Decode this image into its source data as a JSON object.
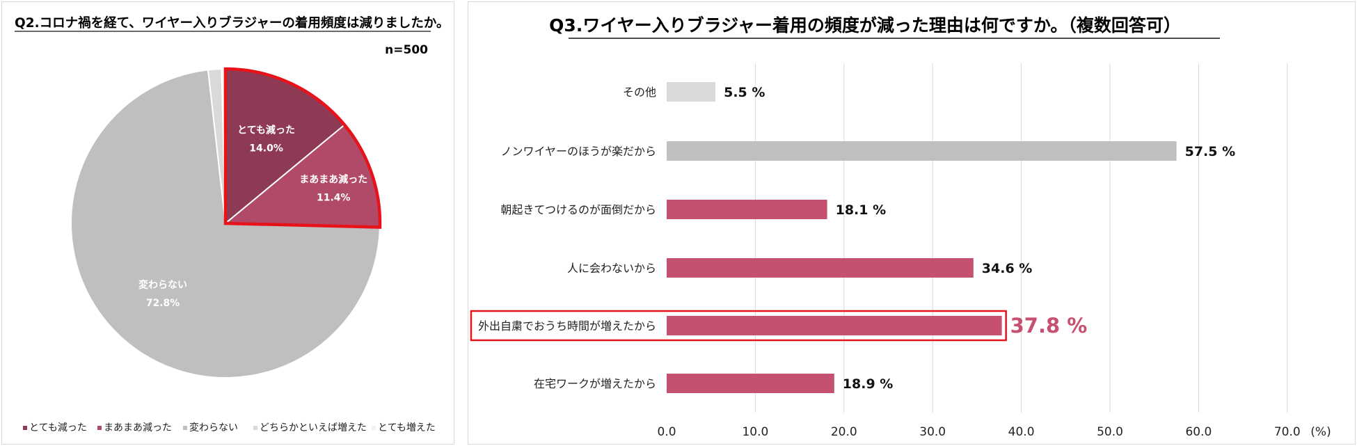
{
  "chart_data": [
    {
      "type": "pie",
      "title": "Q2.コロナ禍を経て、ワイヤー入りブラジャーの着用頻度は減りましたか。",
      "sample_size": "n=500",
      "slices": [
        {
          "label": "とても減った",
          "value": 14.0,
          "value_label": "14.0%",
          "color": "#8e3a55",
          "highlighted": true
        },
        {
          "label": "まあまあ減った",
          "value": 11.4,
          "value_label": "11.4%",
          "color": "#b04a68",
          "highlighted": true
        },
        {
          "label": "変わらない",
          "value": 72.8,
          "value_label": "72.8%",
          "color": "#bfbfbf",
          "highlighted": false
        },
        {
          "label": "どちらかといえば増えた",
          "value": 1.4,
          "value_label": "",
          "color": "#d9d9d9",
          "highlighted": false
        },
        {
          "label": "とても増えた",
          "value": 0.4,
          "value_label": "",
          "color": "#f0f0f0",
          "highlighted": false
        }
      ],
      "legend_placement": "bottom",
      "highlight_color": "#e8121b"
    },
    {
      "type": "bar",
      "orientation": "horizontal",
      "title": "Q3.ワイヤー入りブラジャー着用の頻度が減った理由は何ですか。（複数回答可）",
      "categories": [
        "その他",
        "ノンワイヤーのほうが楽だから",
        "朝起きてつけるのが面倒だから",
        "人に会わないから",
        "外出自粛でおうち時間が増えたから",
        "在宅ワークが増えたから"
      ],
      "values": [
        5.5,
        57.5,
        18.1,
        34.6,
        37.8,
        18.9
      ],
      "value_labels": [
        "5.5 %",
        "57.5 %",
        "18.1 %",
        "34.6 %",
        "37.8 %",
        "18.9 %"
      ],
      "bar_colors": [
        "#d9d9d9",
        "#bfbfbf",
        "#c5506f",
        "#c5506f",
        "#c5506f",
        "#c5506f"
      ],
      "highlight_index": 4,
      "highlight_color": "#c5506f",
      "highlight_box_color": "#e8121b",
      "xlim": [
        0,
        70
      ],
      "xticks": [
        "0.0",
        "10.0",
        "20.0",
        "30.0",
        "40.0",
        "50.0",
        "60.0",
        "70.0"
      ],
      "xunit": "(%)",
      "grid": true
    }
  ]
}
